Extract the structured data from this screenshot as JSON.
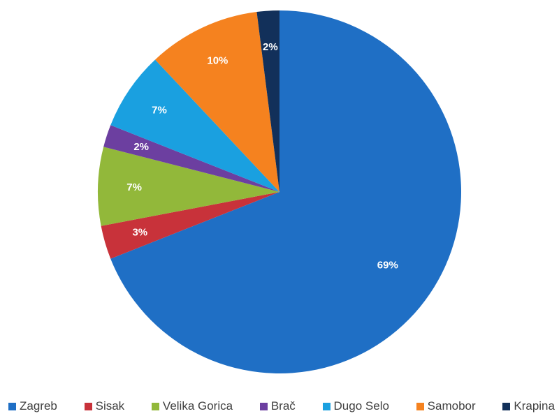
{
  "chart_data": {
    "type": "pie",
    "start_angle_deg": 0,
    "direction": "clockwise",
    "legend_position": "bottom",
    "slices": [
      {
        "label": "Zagreb",
        "value": 69,
        "value_label": "69%",
        "color": "#1F6FC5"
      },
      {
        "label": "Sisak",
        "value": 3,
        "value_label": "3%",
        "color": "#C8323A"
      },
      {
        "label": "Velika Gorica",
        "value": 7,
        "value_label": "7%",
        "color": "#92B83A"
      },
      {
        "label": "Brač",
        "value": 2,
        "value_label": "2%",
        "color": "#6C3FA0"
      },
      {
        "label": "Dugo Selo",
        "value": 7,
        "value_label": "7%",
        "color": "#1AA0E0"
      },
      {
        "label": "Samobor",
        "value": 10,
        "value_label": "10%",
        "color": "#F5821F"
      },
      {
        "label": "Krapina",
        "value": 2,
        "value_label": "2%",
        "color": "#12305A"
      }
    ]
  }
}
